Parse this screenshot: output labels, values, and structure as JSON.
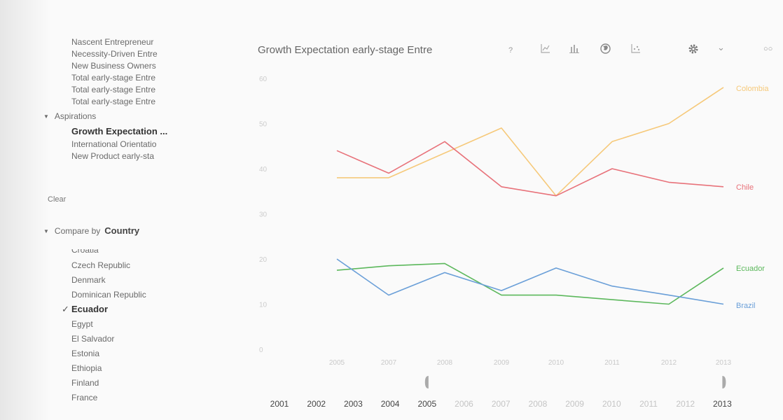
{
  "sidebar": {
    "indicators": [
      "Nascent Entrepreneur",
      "Necessity-Driven Entre",
      "New Business Owners",
      "Total early-stage Entre",
      "Total early-stage Entre",
      "Total early-stage Entre"
    ],
    "aspirations_label": "Aspirations",
    "aspirations": [
      "Growth Expectation ...",
      "International Orientatio",
      "New Product early-sta"
    ],
    "selected_aspiration": "Growth Expectation ...",
    "clear_label": "Clear",
    "compare_by_label": "Compare by",
    "compare_by_value": "Country",
    "countries": [
      "Croatia",
      "Czech Republic",
      "Denmark",
      "Dominican Republic",
      "Ecuador",
      "Egypt",
      "El Salvador",
      "Estonia",
      "Ethiopia",
      "Finland",
      "France"
    ],
    "selected_country": "Ecuador"
  },
  "toolbar": {
    "title": "Growth Expectation early-stage Entre",
    "help": "?",
    "icons": [
      "line-chart-icon",
      "bar-chart-icon",
      "globe-icon",
      "scatter-icon",
      "gear-icon",
      "chevron-down-icon",
      "link-icon"
    ]
  },
  "chart_data": {
    "type": "line",
    "x": [
      2005,
      2007,
      2008,
      2009,
      2010,
      2011,
      2012,
      2013
    ],
    "xticks": [
      "2005",
      "2007",
      "2008",
      "2009",
      "2010",
      "2011",
      "2012",
      "2013"
    ],
    "ylim": [
      0,
      60
    ],
    "yticks": [
      "0",
      "10",
      "20",
      "30",
      "40",
      "50",
      "60"
    ],
    "series": [
      {
        "name": "Colombia",
        "color": "#f6c97a",
        "x": [
          2005,
          2007,
          2009,
          2010,
          2011,
          2012,
          2013
        ],
        "values": [
          38,
          38,
          49,
          34,
          46,
          50,
          58
        ]
      },
      {
        "name": "Chile",
        "color": "#e8727a",
        "x": [
          2005,
          2007,
          2008,
          2009,
          2010,
          2011,
          2012,
          2013
        ],
        "values": [
          44,
          39,
          46,
          36,
          34,
          40,
          37,
          36
        ]
      },
      {
        "name": "Ecuador",
        "color": "#5cb85c",
        "x": [
          2005,
          2007,
          2008,
          2009,
          2010,
          2011,
          2012,
          2013
        ],
        "values": [
          17.5,
          18.5,
          19,
          12,
          12,
          11,
          10,
          18
        ]
      },
      {
        "name": "Brazil",
        "color": "#6a9fd8",
        "x": [
          2005,
          2007,
          2008,
          2009,
          2010,
          2011,
          2012,
          2013
        ],
        "values": [
          20,
          12,
          17,
          13,
          18,
          14,
          12,
          10
        ]
      }
    ],
    "timeline": [
      "2001",
      "2002",
      "2003",
      "2004",
      "2005",
      "2006",
      "2007",
      "2008",
      "2009",
      "2010",
      "2011",
      "2012",
      "2013"
    ],
    "timeline_selected": [
      "2005",
      "2013"
    ]
  }
}
